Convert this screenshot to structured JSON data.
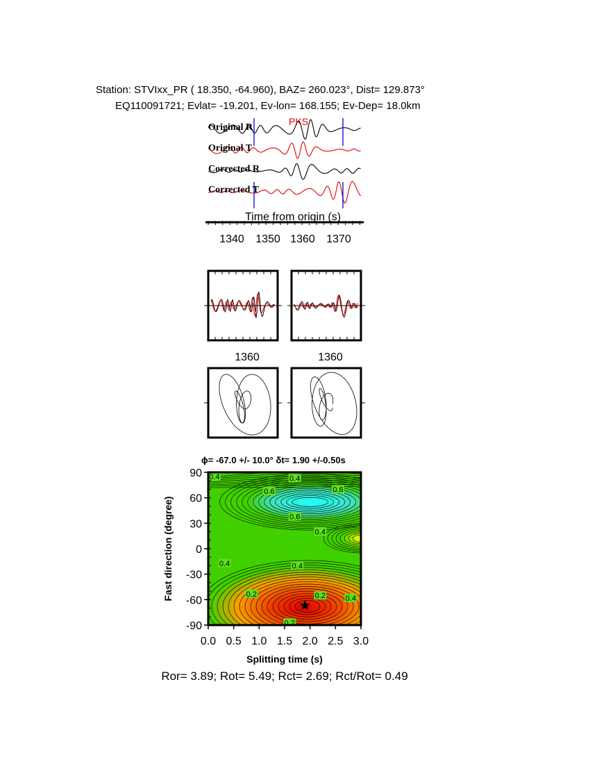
{
  "header": {
    "line1": "Station: STVIxx_PR (  18.350,  -64.960), BAZ=  260.023°, Dist=  129.873°",
    "line2": "EQ110091721; Evlat= -19.201, Ev-lon= 168.155; Ev-Dep= 18.0km"
  },
  "traces": {
    "phase_label": "PKS",
    "labels": [
      "Original R",
      "Original T",
      "Corrected R",
      "Corrected T"
    ],
    "xlabel": "Time from origin (s)",
    "xticks": [
      "1340",
      "1350",
      "1360",
      "1370"
    ],
    "colors": {
      "radial": "#000000",
      "transverse": "#e00000",
      "window": "#0000cc"
    }
  },
  "waveform_panels": {
    "xtick_left": "1360",
    "xtick_right": "1360"
  },
  "chart_data": {
    "type": "heatmap",
    "title": "ϕ= -67.0 +/- 10.0° δt= 1.90 +/-0.50s",
    "xlabel": "Splitting time (s)",
    "ylabel": "Fast direction (degree)",
    "xlim": [
      0,
      3
    ],
    "ylim": [
      -90,
      90
    ],
    "xticks": [
      "0.0",
      "0.5",
      "1.0",
      "1.5",
      "2.0",
      "2.5",
      "3.0"
    ],
    "yticks": [
      "90",
      "60",
      "30",
      "0",
      "-30",
      "-60",
      "-90"
    ],
    "best_fit": {
      "delay_s": 1.9,
      "fast_deg": -67
    },
    "contour_labels": [
      {
        "text": "0.4",
        "x": 0.12,
        "y": 85
      },
      {
        "text": "0.4",
        "x": 1.7,
        "y": 83
      },
      {
        "text": "0.6",
        "x": 1.2,
        "y": 68
      },
      {
        "text": "0.6",
        "x": 2.55,
        "y": 70
      },
      {
        "text": "0.6",
        "x": 1.7,
        "y": 38
      },
      {
        "text": "0.4",
        "x": 2.2,
        "y": 20
      },
      {
        "text": "0.4",
        "x": 0.32,
        "y": -17
      },
      {
        "text": "0.4",
        "x": 1.75,
        "y": -20
      },
      {
        "text": "0.2",
        "x": 0.85,
        "y": -53
      },
      {
        "text": "0.2",
        "x": 2.2,
        "y": -55
      },
      {
        "text": "0.4",
        "x": 2.8,
        "y": -58
      },
      {
        "text": "0.2",
        "x": 1.6,
        "y": -87
      }
    ]
  },
  "footer": {
    "stats": "Ror= 3.89; Rot= 5.49; Rct= 2.69; Rct/Rot= 0.49"
  }
}
